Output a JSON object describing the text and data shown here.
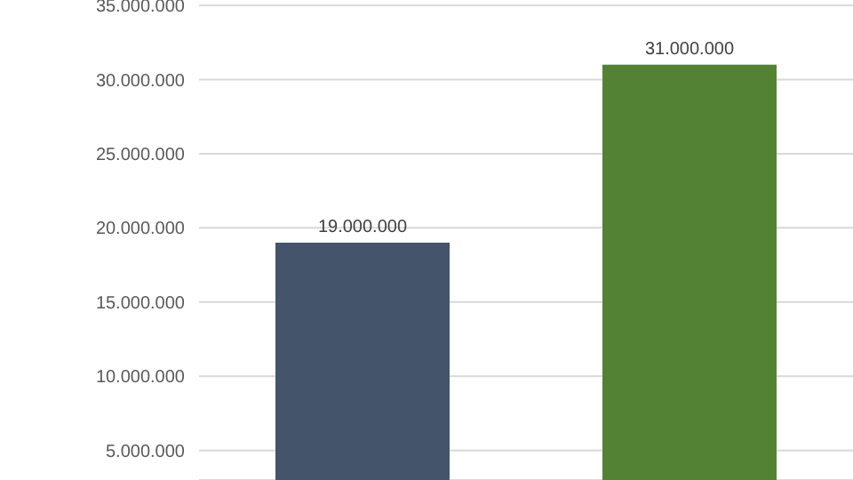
{
  "chart_data": {
    "type": "bar",
    "categories": [
      null,
      null
    ],
    "values": [
      19000000,
      31000000
    ],
    "colors": [
      "#44546a",
      "#548235"
    ],
    "value_labels": [
      "19.000.000",
      "31.000.000"
    ],
    "ylim": [
      3000000,
      35000000
    ],
    "yticks": [
      {
        "value": 5000000,
        "label": "5.000.000"
      },
      {
        "value": 10000000,
        "label": "10.000.000"
      },
      {
        "value": 15000000,
        "label": "15.000.000"
      },
      {
        "value": 20000000,
        "label": "20.000.000"
      },
      {
        "value": 25000000,
        "label": "25.000.000"
      },
      {
        "value": 30000000,
        "label": "30.000.000"
      },
      {
        "value": 35000000,
        "label": "35.000.000"
      }
    ],
    "grid": "y",
    "tick_labels": "y"
  }
}
